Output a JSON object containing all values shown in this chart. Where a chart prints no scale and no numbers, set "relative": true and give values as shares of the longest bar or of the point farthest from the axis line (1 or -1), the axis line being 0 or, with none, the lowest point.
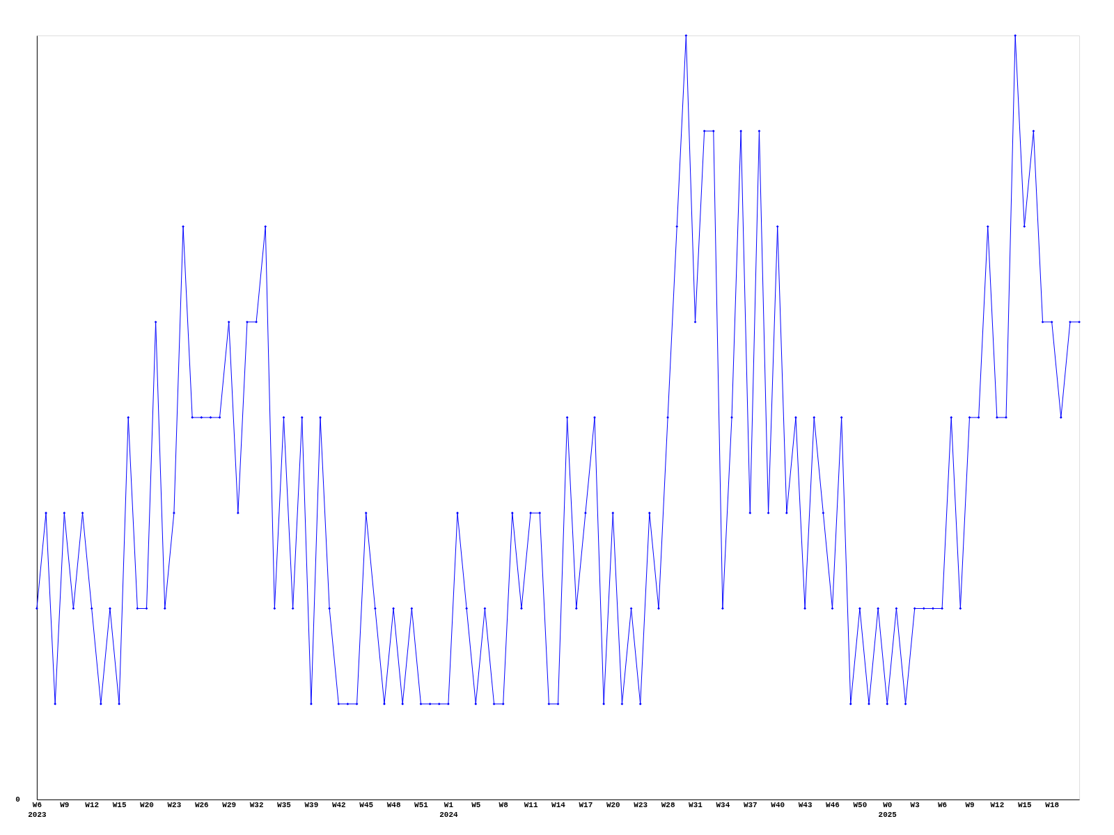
{
  "chart_data": {
    "type": "line",
    "relative": true,
    "color": "#0000ff",
    "marker": "diamond",
    "line_style": "solid",
    "grid": false,
    "categories": [
      "W6\n2023",
      null,
      null,
      "W9",
      null,
      null,
      "W12",
      null,
      null,
      "W15",
      null,
      null,
      "W20",
      null,
      null,
      "W23",
      null,
      null,
      "W26",
      null,
      null,
      "W29",
      null,
      null,
      "W32",
      null,
      null,
      "W35",
      null,
      null,
      "W39",
      null,
      null,
      "W42",
      null,
      null,
      "W45",
      null,
      null,
      "W48",
      null,
      null,
      "W51",
      null,
      null,
      "W1\n2024",
      null,
      null,
      "W5",
      null,
      null,
      "W8",
      null,
      null,
      "W11",
      null,
      null,
      "W14",
      null,
      null,
      "W17",
      null,
      null,
      "W20",
      null,
      null,
      "W23",
      null,
      null,
      "W28",
      null,
      null,
      "W31",
      null,
      null,
      "W34",
      null,
      null,
      "W37",
      null,
      null,
      "W40",
      null,
      null,
      "W43",
      null,
      null,
      "W46",
      null,
      null,
      "W50",
      null,
      null,
      "W0\n2025",
      null,
      null,
      "W3",
      null,
      null,
      "W6",
      null,
      null,
      "W9",
      null,
      null,
      "W12",
      null,
      null,
      "W15",
      null,
      null,
      "W18",
      null,
      null,
      null
    ],
    "values": [
      0.25,
      0.375,
      0.125,
      0.375,
      0.25,
      0.375,
      0.25,
      0.125,
      0.25,
      0.125,
      0.5,
      0.25,
      0.25,
      0.625,
      0.25,
      0.375,
      0.75,
      0.5,
      0.5,
      0.5,
      0.5,
      0.625,
      0.375,
      0.625,
      0.625,
      0.75,
      0.25,
      0.5,
      0.25,
      0.5,
      0.125,
      0.5,
      0.25,
      0.125,
      0.125,
      0.125,
      0.375,
      0.25,
      0.125,
      0.25,
      0.125,
      0.25,
      0.125,
      0.125,
      0.125,
      0.125,
      0.375,
      0.25,
      0.125,
      0.25,
      0.125,
      0.125,
      0.375,
      0.25,
      0.375,
      0.375,
      0.125,
      0.125,
      0.5,
      0.25,
      0.375,
      0.5,
      0.125,
      0.375,
      0.125,
      0.25,
      0.125,
      0.375,
      0.25,
      0.5,
      0.75,
      1,
      0.625,
      0.875,
      0.875,
      0.25,
      0.5,
      0.875,
      0.375,
      0.875,
      0.375,
      0.75,
      0.375,
      0.5,
      0.25,
      0.5,
      0.375,
      0.25,
      0.5,
      0.125,
      0.25,
      0.125,
      0.25,
      0.125,
      0.25,
      0.125,
      0.25,
      0.25,
      0.25,
      0.25,
      0.5,
      0.25,
      0.5,
      0.5,
      0.75,
      0.5,
      0.5,
      1,
      0.75,
      0.875,
      0.625,
      0.625,
      0.5,
      0.625,
      0.625
    ],
    "annotations": [
      "0"
    ]
  }
}
